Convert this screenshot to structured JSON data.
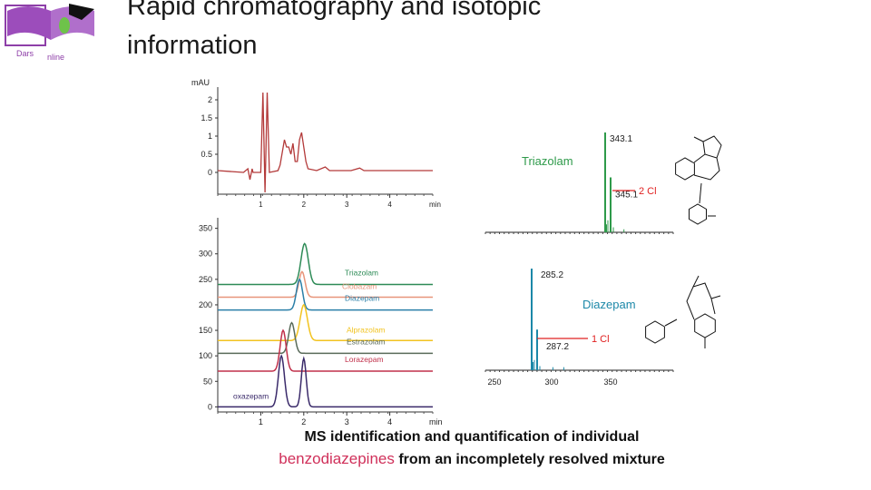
{
  "slide": {
    "title_line1": "Rapid chromatography and isotopic",
    "title_line2": "information",
    "caption_part1": "MS identification and quantification of individual",
    "caption_highlight": "benzodiazepines",
    "caption_part2": "from an incompletely resolved mixture"
  },
  "logo": {
    "text_left": "Dars",
    "text_right": "nline",
    "color": "#8e3fa8"
  },
  "chart_data": [
    {
      "type": "line",
      "title": "",
      "ylabel": "mAU",
      "xlabel": "min",
      "yticks": [
        "2",
        "1.5",
        "1",
        "0.5",
        "0"
      ],
      "xticks": [
        "1",
        "2",
        "3",
        "4"
      ],
      "ylim": [
        -0.6,
        2.2
      ],
      "xlim": [
        0,
        5
      ],
      "color": "#b33a3a",
      "points": [
        [
          0,
          0.05
        ],
        [
          0.6,
          0.0
        ],
        [
          0.65,
          0.05
        ],
        [
          0.7,
          0.1
        ],
        [
          0.75,
          -0.2
        ],
        [
          0.8,
          0.1
        ],
        [
          0.82,
          0.0
        ],
        [
          1.0,
          0.0
        ],
        [
          1.05,
          2.2
        ],
        [
          1.1,
          -0.55
        ],
        [
          1.15,
          2.2
        ],
        [
          1.2,
          0.0
        ],
        [
          1.4,
          0.05
        ],
        [
          1.45,
          0.2
        ],
        [
          1.55,
          0.9
        ],
        [
          1.6,
          0.7
        ],
        [
          1.65,
          0.7
        ],
        [
          1.7,
          0.5
        ],
        [
          1.75,
          0.8
        ],
        [
          1.8,
          0.3
        ],
        [
          1.85,
          0.3
        ],
        [
          1.9,
          0.9
        ],
        [
          1.95,
          1.1
        ],
        [
          2.0,
          0.7
        ],
        [
          2.05,
          0.3
        ],
        [
          2.1,
          0.1
        ],
        [
          2.3,
          0.05
        ],
        [
          2.5,
          0.15
        ],
        [
          2.6,
          0.05
        ],
        [
          2.9,
          0.05
        ],
        [
          3.1,
          0.05
        ],
        [
          3.3,
          0.12
        ],
        [
          3.4,
          0.05
        ],
        [
          4.0,
          0.05
        ],
        [
          5.0,
          0.05
        ]
      ]
    },
    {
      "type": "line",
      "title": "",
      "xlabel": "min",
      "yticks": [
        "350",
        "300",
        "250",
        "200",
        "150",
        "100",
        "50",
        "0"
      ],
      "xticks": [
        "1",
        "2",
        "3",
        "4"
      ],
      "ylim": [
        -10,
        360
      ],
      "xlim": [
        0,
        5
      ],
      "series": [
        {
          "name": "Triazolam",
          "color": "#2e8b57",
          "baseline": 240,
          "peak_x": 2.02,
          "peak_h": 80,
          "width": 0.12
        },
        {
          "name": "Clobazam",
          "color": "#e8957a",
          "baseline": 215,
          "peak_x": 1.96,
          "peak_h": 50,
          "width": 0.1
        },
        {
          "name": "Diazepam",
          "color": "#2a7fa8",
          "baseline": 190,
          "peak_x": 1.9,
          "peak_h": 60,
          "width": 0.1
        },
        {
          "name": "Alprazolam",
          "color": "#f2c320",
          "baseline": 130,
          "peak_x": 2.0,
          "peak_h": 70,
          "width": 0.12
        },
        {
          "name": "Estrazolam",
          "color": "#5a6b5a",
          "baseline": 105,
          "peak_x": 1.72,
          "peak_h": 60,
          "width": 0.1
        },
        {
          "name": "Lorazepam",
          "color": "#c0304a",
          "baseline": 70,
          "peak_x": 1.52,
          "peak_h": 80,
          "width": 0.1
        },
        {
          "name": "oxazepam",
          "color": "#3a2a6a",
          "baseline": 0,
          "peak_x": 1.48,
          "peak_h": 100,
          "width": 0.1
        }
      ]
    },
    {
      "type": "bar",
      "title": "",
      "compound": "Triazolam",
      "color": "#2e9a4a",
      "peaks": [
        {
          "mz": 343.1,
          "rel": 1.0,
          "label": "343.1"
        },
        {
          "mz": 345.1,
          "rel": 0.55,
          "label": "345.1"
        }
      ],
      "annotation": "2 Cl",
      "annotation_color": "#e02020"
    },
    {
      "type": "bar",
      "title": "",
      "compound": "Diazepam",
      "color": "#1c88a8",
      "peaks": [
        {
          "mz": 285.2,
          "rel": 1.0,
          "label": "285.2"
        },
        {
          "mz": 287.2,
          "rel": 0.4,
          "label": "287.2"
        }
      ],
      "xticks": [
        "250",
        "300",
        "350"
      ],
      "annotation": "1 Cl",
      "annotation_color": "#e02020"
    }
  ]
}
